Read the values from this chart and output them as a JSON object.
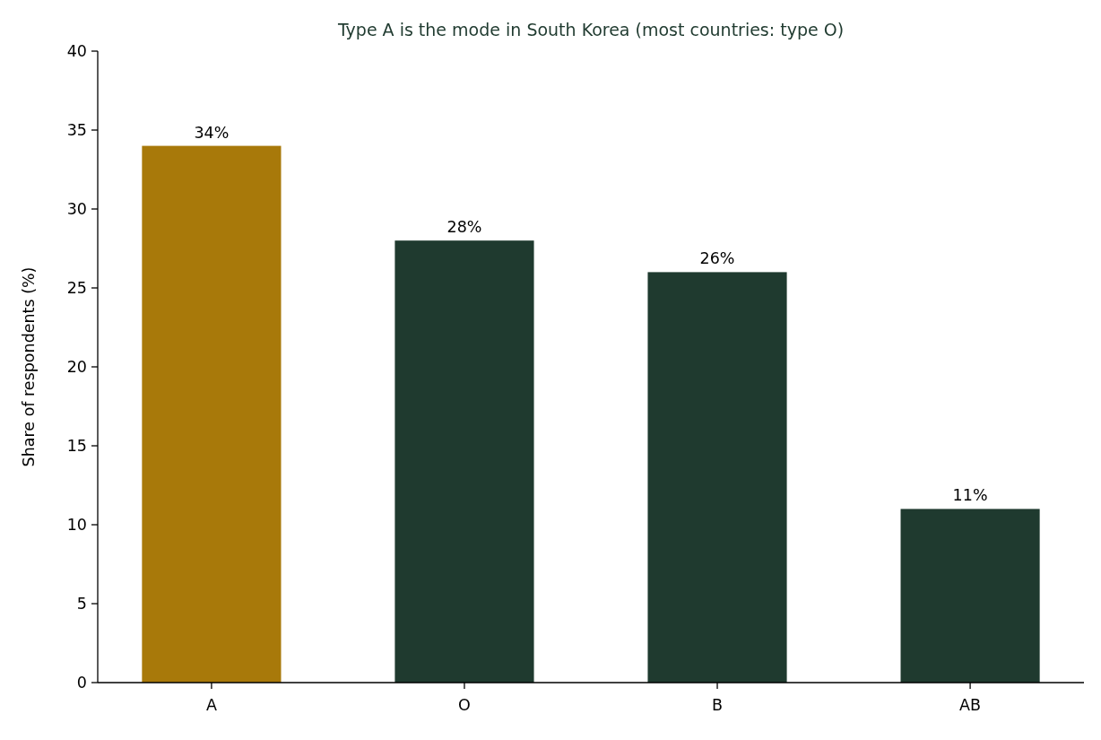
{
  "chart_data": {
    "type": "bar",
    "title": "Type A is the mode in South Korea (most countries: type O)",
    "ylabel": "Share of respondents (%)",
    "categories": [
      "A",
      "O",
      "B",
      "AB"
    ],
    "values": [
      34,
      28,
      26,
      11
    ],
    "colors": [
      "#a8790a",
      "#1f3a2f",
      "#1f3a2f",
      "#1f3a2f"
    ],
    "value_labels": [
      "34%",
      "28%",
      "26%",
      "11%"
    ],
    "ylim": [
      0,
      40
    ],
    "yticks": [
      0,
      5,
      10,
      15,
      20,
      25,
      30,
      35,
      40
    ],
    "grid": false
  }
}
